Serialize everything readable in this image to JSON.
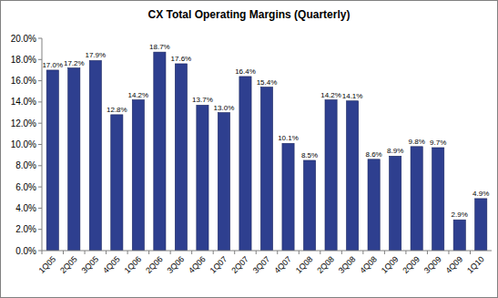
{
  "chart_data": {
    "type": "bar",
    "title": "CX Total Operating Margins (Quarterly)",
    "categories": [
      "1Q05",
      "2Q05",
      "3Q05",
      "4Q05",
      "1Q06",
      "2Q06",
      "3Q06",
      "4Q06",
      "1Q07",
      "2Q07",
      "3Q07",
      "4Q07",
      "1Q08",
      "2Q08",
      "3Q08",
      "4Q08",
      "1Q09",
      "2Q09",
      "3Q09",
      "4Q09",
      "1Q10"
    ],
    "values": [
      17.0,
      17.2,
      17.9,
      12.8,
      14.2,
      18.7,
      17.6,
      13.7,
      13.0,
      16.4,
      15.4,
      10.1,
      8.5,
      14.2,
      14.1,
      8.6,
      8.9,
      9.8,
      9.7,
      2.9,
      4.9
    ],
    "value_labels": [
      "17.0%",
      "17.2%",
      "17.9%",
      "12.8%",
      "14.2%",
      "18.7%",
      "17.6%",
      "13.7%",
      "13.0%",
      "16.4%",
      "15.4%",
      "10.1%",
      "8.5%",
      "14.2%",
      "14.1%",
      "8.6%",
      "8.9%",
      "9.8%",
      "9.7%",
      "2.9%",
      "4.9%"
    ],
    "color": "#2e3f8f",
    "ylim": [
      0,
      20
    ],
    "yticks": [
      {
        "value": 0,
        "label": "0.0%"
      },
      {
        "value": 2,
        "label": "2.0%"
      },
      {
        "value": 4,
        "label": "4.0%"
      },
      {
        "value": 6,
        "label": "6.0%"
      },
      {
        "value": 8,
        "label": "8.0%"
      },
      {
        "value": 10,
        "label": "10.0%"
      },
      {
        "value": 12,
        "label": "12.0%"
      },
      {
        "value": 14,
        "label": "14.0%"
      },
      {
        "value": 16,
        "label": "16.0%"
      },
      {
        "value": 18,
        "label": "18.0%"
      },
      {
        "value": 20,
        "label": "20.0%"
      }
    ],
    "grid": false,
    "data_labels": true
  }
}
